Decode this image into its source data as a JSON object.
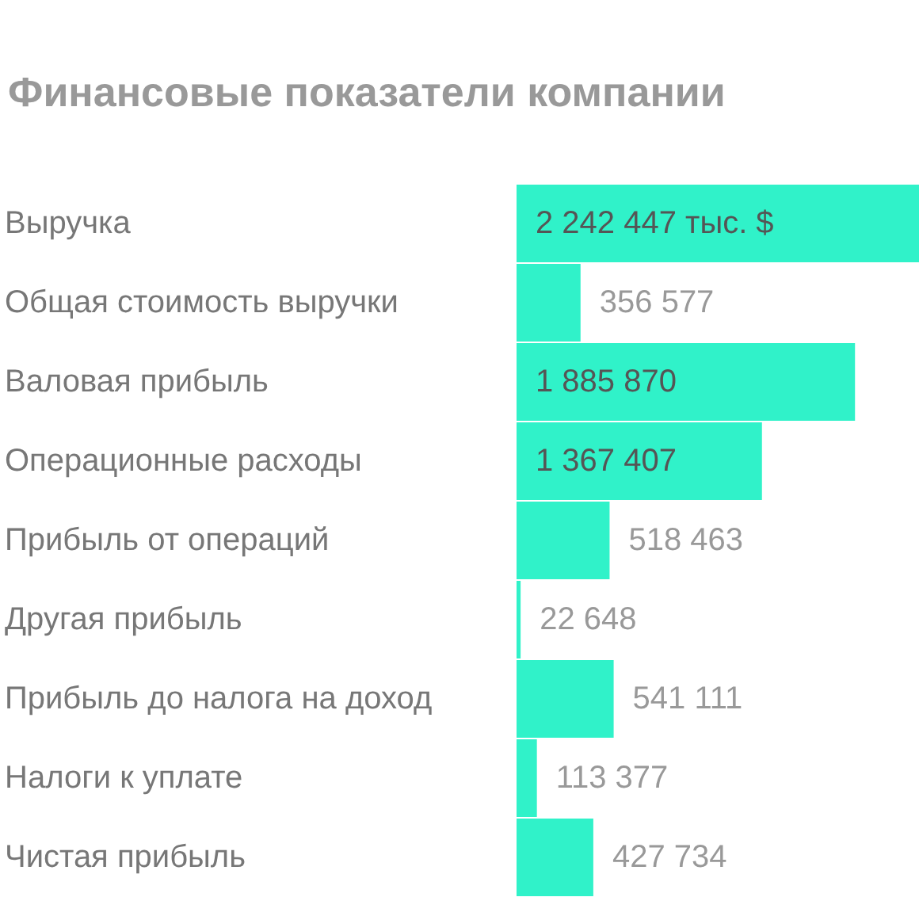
{
  "chart_data": {
    "type": "bar",
    "orientation": "horizontal",
    "title": "Финансовые показатели компании",
    "categories": [
      "Выручка",
      "Общая стоимость выручки",
      "Валовая прибыль",
      "Операционные расходы",
      "Прибыль от операций",
      "Другая прибыль",
      "Прибыль до налога на доход",
      "Налоги к уплате",
      "Чистая прибыль"
    ],
    "values": [
      2242447,
      356577,
      1885870,
      1367407,
      518463,
      22648,
      541111,
      113377,
      427734
    ],
    "value_labels": [
      "2 242 447 тыс. $",
      "356 577",
      "1 885 870",
      "1 367 407",
      "518 463",
      "22 648",
      "541 111",
      "113 377",
      "427 734"
    ],
    "color": "#30f2c9"
  }
}
